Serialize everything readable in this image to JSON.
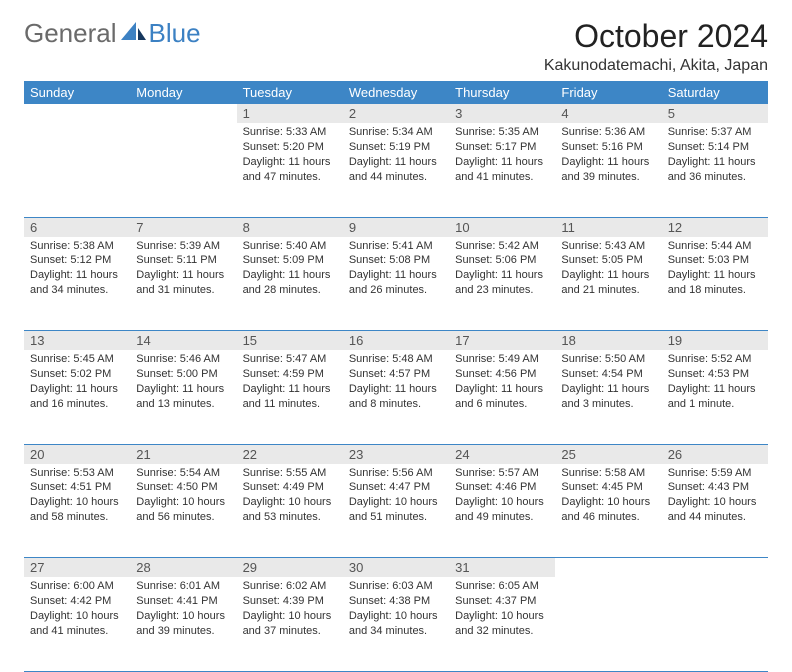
{
  "logo": {
    "general": "General",
    "blue": "Blue"
  },
  "title": "October 2024",
  "location": "Kakunodatemachi, Akita, Japan",
  "theme": {
    "header_bg": "#3d86c6",
    "header_fg": "#ffffff",
    "daynum_bg": "#e9e9e9",
    "daynum_fg": "#555555",
    "rule": "#3d86c6",
    "body_font_size": 11
  },
  "weekdays": [
    "Sunday",
    "Monday",
    "Tuesday",
    "Wednesday",
    "Thursday",
    "Friday",
    "Saturday"
  ],
  "weeks": [
    [
      null,
      null,
      {
        "n": "1",
        "sunrise": "5:33 AM",
        "sunset": "5:20 PM",
        "daylight": "11 hours and 47 minutes."
      },
      {
        "n": "2",
        "sunrise": "5:34 AM",
        "sunset": "5:19 PM",
        "daylight": "11 hours and 44 minutes."
      },
      {
        "n": "3",
        "sunrise": "5:35 AM",
        "sunset": "5:17 PM",
        "daylight": "11 hours and 41 minutes."
      },
      {
        "n": "4",
        "sunrise": "5:36 AM",
        "sunset": "5:16 PM",
        "daylight": "11 hours and 39 minutes."
      },
      {
        "n": "5",
        "sunrise": "5:37 AM",
        "sunset": "5:14 PM",
        "daylight": "11 hours and 36 minutes."
      }
    ],
    [
      {
        "n": "6",
        "sunrise": "5:38 AM",
        "sunset": "5:12 PM",
        "daylight": "11 hours and 34 minutes."
      },
      {
        "n": "7",
        "sunrise": "5:39 AM",
        "sunset": "5:11 PM",
        "daylight": "11 hours and 31 minutes."
      },
      {
        "n": "8",
        "sunrise": "5:40 AM",
        "sunset": "5:09 PM",
        "daylight": "11 hours and 28 minutes."
      },
      {
        "n": "9",
        "sunrise": "5:41 AM",
        "sunset": "5:08 PM",
        "daylight": "11 hours and 26 minutes."
      },
      {
        "n": "10",
        "sunrise": "5:42 AM",
        "sunset": "5:06 PM",
        "daylight": "11 hours and 23 minutes."
      },
      {
        "n": "11",
        "sunrise": "5:43 AM",
        "sunset": "5:05 PM",
        "daylight": "11 hours and 21 minutes."
      },
      {
        "n": "12",
        "sunrise": "5:44 AM",
        "sunset": "5:03 PM",
        "daylight": "11 hours and 18 minutes."
      }
    ],
    [
      {
        "n": "13",
        "sunrise": "5:45 AM",
        "sunset": "5:02 PM",
        "daylight": "11 hours and 16 minutes."
      },
      {
        "n": "14",
        "sunrise": "5:46 AM",
        "sunset": "5:00 PM",
        "daylight": "11 hours and 13 minutes."
      },
      {
        "n": "15",
        "sunrise": "5:47 AM",
        "sunset": "4:59 PM",
        "daylight": "11 hours and 11 minutes."
      },
      {
        "n": "16",
        "sunrise": "5:48 AM",
        "sunset": "4:57 PM",
        "daylight": "11 hours and 8 minutes."
      },
      {
        "n": "17",
        "sunrise": "5:49 AM",
        "sunset": "4:56 PM",
        "daylight": "11 hours and 6 minutes."
      },
      {
        "n": "18",
        "sunrise": "5:50 AM",
        "sunset": "4:54 PM",
        "daylight": "11 hours and 3 minutes."
      },
      {
        "n": "19",
        "sunrise": "5:52 AM",
        "sunset": "4:53 PM",
        "daylight": "11 hours and 1 minute."
      }
    ],
    [
      {
        "n": "20",
        "sunrise": "5:53 AM",
        "sunset": "4:51 PM",
        "daylight": "10 hours and 58 minutes."
      },
      {
        "n": "21",
        "sunrise": "5:54 AM",
        "sunset": "4:50 PM",
        "daylight": "10 hours and 56 minutes."
      },
      {
        "n": "22",
        "sunrise": "5:55 AM",
        "sunset": "4:49 PM",
        "daylight": "10 hours and 53 minutes."
      },
      {
        "n": "23",
        "sunrise": "5:56 AM",
        "sunset": "4:47 PM",
        "daylight": "10 hours and 51 minutes."
      },
      {
        "n": "24",
        "sunrise": "5:57 AM",
        "sunset": "4:46 PM",
        "daylight": "10 hours and 49 minutes."
      },
      {
        "n": "25",
        "sunrise": "5:58 AM",
        "sunset": "4:45 PM",
        "daylight": "10 hours and 46 minutes."
      },
      {
        "n": "26",
        "sunrise": "5:59 AM",
        "sunset": "4:43 PM",
        "daylight": "10 hours and 44 minutes."
      }
    ],
    [
      {
        "n": "27",
        "sunrise": "6:00 AM",
        "sunset": "4:42 PM",
        "daylight": "10 hours and 41 minutes."
      },
      {
        "n": "28",
        "sunrise": "6:01 AM",
        "sunset": "4:41 PM",
        "daylight": "10 hours and 39 minutes."
      },
      {
        "n": "29",
        "sunrise": "6:02 AM",
        "sunset": "4:39 PM",
        "daylight": "10 hours and 37 minutes."
      },
      {
        "n": "30",
        "sunrise": "6:03 AM",
        "sunset": "4:38 PM",
        "daylight": "10 hours and 34 minutes."
      },
      {
        "n": "31",
        "sunrise": "6:05 AM",
        "sunset": "4:37 PM",
        "daylight": "10 hours and 32 minutes."
      },
      null,
      null
    ]
  ]
}
